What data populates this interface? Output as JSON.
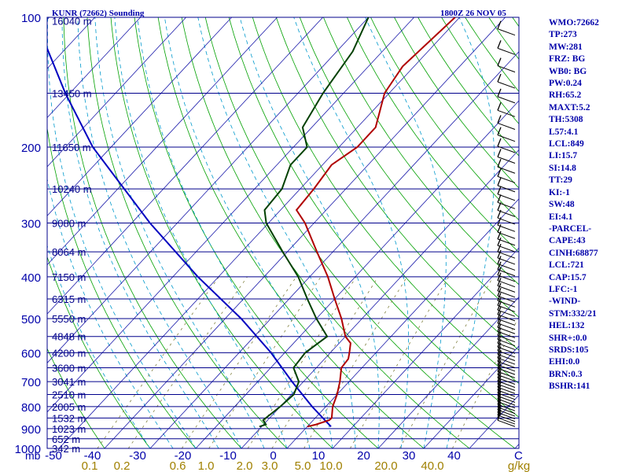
{
  "header": {
    "station": "KUNR (72662) Sounding",
    "time": "1800Z 26 NOV 05"
  },
  "indices": [
    "WMO:72662",
    "TP:273",
    "MW:281",
    "FRZ: BG",
    "WB0: BG",
    "PW:0.24",
    "RH:65.2",
    "MAXT:5.2",
    "TH:5308",
    "L57:4.1",
    "LCL:849",
    "LI:15.7",
    "SI:14.8",
    "TT:29",
    "KI:-1",
    "SW:48",
    "EI:4.1",
    "-PARCEL-",
    "CAPE:43",
    "CINH:68877",
    "LCL:721",
    "CAP:15.7",
    "LFC:-1",
    "-WIND-",
    "STM:332/21",
    "HEL:132",
    "SHR+:0.0",
    "SRDS:105",
    "EHI:0.0",
    "BRN:0.3",
    "BSHR:141"
  ],
  "colors": {
    "temperature": "#b00000",
    "dewpoint": "#004000",
    "parcel": "#0000c0",
    "isobar": "#00008b",
    "isotherm": "#1a1aaa",
    "dry_adiabat": "#00a000",
    "moist_adiabat": "#0099cc",
    "mixing_ratio": "#808040",
    "wind_barb": "#000000",
    "text": "#0000aa"
  },
  "chart_data": {
    "type": "skew-t log-p sounding",
    "title": "KUNR (72662) Sounding",
    "time": "1800Z 26 NOV 05",
    "y_axis": {
      "scale": "log",
      "unit": "mb",
      "range": [
        1000,
        100
      ],
      "pressure_ticks": [
        100,
        200,
        300,
        400,
        500,
        600,
        700,
        800,
        900,
        1000
      ]
    },
    "x_axis": {
      "unit": "C",
      "range": [
        -50,
        50
      ],
      "temperature_ticks": [
        -50,
        -40,
        -30,
        -20,
        -10,
        0,
        10,
        20,
        30,
        40
      ]
    },
    "height_labels": [
      {
        "p": 102,
        "label": "16040 m"
      },
      {
        "p": 150,
        "label": "13450 m"
      },
      {
        "p": 200,
        "label": "11650 m"
      },
      {
        "p": 250,
        "label": "10240 m"
      },
      {
        "p": 300,
        "label": "9080 m"
      },
      {
        "p": 350,
        "label": "8064 m"
      },
      {
        "p": 400,
        "label": "7150 m"
      },
      {
        "p": 450,
        "label": "6315 m"
      },
      {
        "p": 500,
        "label": "5550 m"
      },
      {
        "p": 550,
        "label": "4848 m"
      },
      {
        "p": 600,
        "label": "4200 m"
      },
      {
        "p": 650,
        "label": "3600 m"
      },
      {
        "p": 700,
        "label": "3041 m"
      },
      {
        "p": 750,
        "label": "2510 m"
      },
      {
        "p": 800,
        "label": "2005 m"
      },
      {
        "p": 850,
        "label": "1532 m"
      },
      {
        "p": 900,
        "label": "1023 m"
      },
      {
        "p": 950,
        "label": "652 m"
      },
      {
        "p": 1000,
        "label": "342 m"
      }
    ],
    "mixing_ratio_labels": [
      "0.1",
      "0.2",
      "0.6",
      "1.0",
      "2.0",
      "3.0",
      "5.0",
      "10.0",
      "20.0",
      "40.0",
      "g/kg"
    ],
    "mixing_ratio_values": [
      0.1,
      0.2,
      0.6,
      1.0,
      2.0,
      3.0,
      5.0,
      10.0,
      20.0,
      40.0
    ],
    "temperature": [
      {
        "p": 890,
        "t": 0.0
      },
      {
        "p": 880,
        "t": 1.5
      },
      {
        "p": 860,
        "t": 3.5
      },
      {
        "p": 850,
        "t": 3.6
      },
      {
        "p": 800,
        "t": 1.5
      },
      {
        "p": 750,
        "t": 0.0
      },
      {
        "p": 700,
        "t": -2.0
      },
      {
        "p": 650,
        "t": -4.5
      },
      {
        "p": 620,
        "t": -4.8
      },
      {
        "p": 600,
        "t": -5.8
      },
      {
        "p": 570,
        "t": -7.5
      },
      {
        "p": 550,
        "t": -10.0
      },
      {
        "p": 500,
        "t": -14.5
      },
      {
        "p": 450,
        "t": -20.0
      },
      {
        "p": 400,
        "t": -26.0
      },
      {
        "p": 350,
        "t": -33.5
      },
      {
        "p": 300,
        "t": -42.0
      },
      {
        "p": 280,
        "t": -46.5
      },
      {
        "p": 250,
        "t": -47.0
      },
      {
        "p": 220,
        "t": -48.0
      },
      {
        "p": 200,
        "t": -46.0
      },
      {
        "p": 180,
        "t": -46.0
      },
      {
        "p": 150,
        "t": -51.0
      },
      {
        "p": 130,
        "t": -52.5
      },
      {
        "p": 100,
        "t": -51.0
      }
    ],
    "dewpoint": [
      {
        "p": 890,
        "t": -10.5
      },
      {
        "p": 880,
        "t": -9.5
      },
      {
        "p": 860,
        "t": -11.0
      },
      {
        "p": 800,
        "t": -10.0
      },
      {
        "p": 750,
        "t": -9.5
      },
      {
        "p": 700,
        "t": -11.0
      },
      {
        "p": 650,
        "t": -15.0
      },
      {
        "p": 600,
        "t": -15.5
      },
      {
        "p": 550,
        "t": -14.0
      },
      {
        "p": 500,
        "t": -20.0
      },
      {
        "p": 450,
        "t": -26.0
      },
      {
        "p": 400,
        "t": -32.5
      },
      {
        "p": 350,
        "t": -41.0
      },
      {
        "p": 300,
        "t": -50.5
      },
      {
        "p": 280,
        "t": -53.5
      },
      {
        "p": 250,
        "t": -54.0
      },
      {
        "p": 220,
        "t": -57.0
      },
      {
        "p": 200,
        "t": -57.0
      },
      {
        "p": 180,
        "t": -62.0
      },
      {
        "p": 150,
        "t": -64.5
      },
      {
        "p": 120,
        "t": -66.5
      },
      {
        "p": 100,
        "t": -70.0
      }
    ],
    "parcel": [
      {
        "p": 890,
        "t": 5.2
      },
      {
        "p": 800,
        "t": -3.0
      },
      {
        "p": 700,
        "t": -12.5
      },
      {
        "p": 600,
        "t": -23.0
      },
      {
        "p": 500,
        "t": -36.5
      },
      {
        "p": 400,
        "t": -54.5
      },
      {
        "p": 300,
        "t": -76.0
      },
      {
        "p": 200,
        "t": -104.0
      },
      {
        "p": 150,
        "t": -121.0
      },
      {
        "p": 110,
        "t": -138.0
      }
    ]
  }
}
